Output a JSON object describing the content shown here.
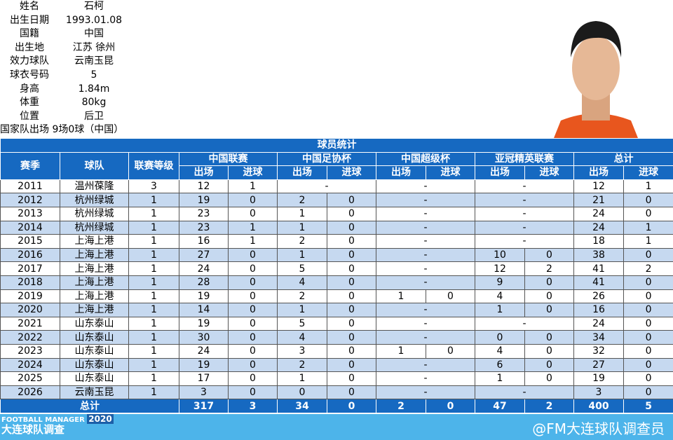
{
  "profile": [
    {
      "label": "姓名",
      "value": "石柯"
    },
    {
      "label": "出生日期",
      "value": "1993.01.08"
    },
    {
      "label": "国籍",
      "value": "中国"
    },
    {
      "label": "出生地",
      "value": "江苏 徐州"
    },
    {
      "label": "效力球队",
      "value": "云南玉昆"
    },
    {
      "label": "球衣号码",
      "value": "5"
    },
    {
      "label": "身高",
      "value": "1.84m"
    },
    {
      "label": "体重",
      "value": "80kg"
    },
    {
      "label": "位置",
      "value": "后卫"
    }
  ],
  "national_team": "国家队出场 9场0球（中国）",
  "table": {
    "title": "球员统计",
    "headers": [
      "赛季",
      "球队",
      "联赛等级",
      "中国联赛",
      "中国足协杯",
      "中国超级杯",
      "亚冠精英联赛",
      "总计"
    ],
    "subheaders": [
      "出场",
      "进球"
    ],
    "rows": [
      [
        "2011",
        "温州葆隆",
        "3",
        [
          "12",
          "1"
        ],
        "-",
        "-",
        "-",
        [
          "12",
          "1"
        ]
      ],
      [
        "2012",
        "杭州绿城",
        "1",
        [
          "19",
          "0"
        ],
        [
          "2",
          "0"
        ],
        "-",
        "-",
        [
          "21",
          "0"
        ]
      ],
      [
        "2013",
        "杭州绿城",
        "1",
        [
          "23",
          "0"
        ],
        [
          "1",
          "0"
        ],
        "-",
        "-",
        [
          "24",
          "0"
        ]
      ],
      [
        "2014",
        "杭州绿城",
        "1",
        [
          "23",
          "1"
        ],
        [
          "1",
          "0"
        ],
        "-",
        "-",
        [
          "24",
          "1"
        ]
      ],
      [
        "2015",
        "上海上港",
        "1",
        [
          "16",
          "1"
        ],
        [
          "2",
          "0"
        ],
        "-",
        "-",
        [
          "18",
          "1"
        ]
      ],
      [
        "2016",
        "上海上港",
        "1",
        [
          "27",
          "0"
        ],
        [
          "1",
          "0"
        ],
        "-",
        [
          "10",
          "0"
        ],
        [
          "38",
          "0"
        ]
      ],
      [
        "2017",
        "上海上港",
        "1",
        [
          "24",
          "0"
        ],
        [
          "5",
          "0"
        ],
        "-",
        [
          "12",
          "2"
        ],
        [
          "41",
          "2"
        ]
      ],
      [
        "2018",
        "上海上港",
        "1",
        [
          "28",
          "0"
        ],
        [
          "4",
          "0"
        ],
        "-",
        [
          "9",
          "0"
        ],
        [
          "41",
          "0"
        ]
      ],
      [
        "2019",
        "上海上港",
        "1",
        [
          "19",
          "0"
        ],
        [
          "2",
          "0"
        ],
        [
          "1",
          "0"
        ],
        [
          "4",
          "0"
        ],
        [
          "26",
          "0"
        ]
      ],
      [
        "2020",
        "上海上港",
        "1",
        [
          "14",
          "0"
        ],
        [
          "1",
          "0"
        ],
        "-",
        [
          "1",
          "0"
        ],
        [
          "16",
          "0"
        ]
      ],
      [
        "2021",
        "山东泰山",
        "1",
        [
          "19",
          "0"
        ],
        [
          "5",
          "0"
        ],
        "-",
        "-",
        [
          "24",
          "0"
        ]
      ],
      [
        "2022",
        "山东泰山",
        "1",
        [
          "30",
          "0"
        ],
        [
          "4",
          "0"
        ],
        "-",
        [
          "0",
          "0"
        ],
        [
          "34",
          "0"
        ]
      ],
      [
        "2023",
        "山东泰山",
        "1",
        [
          "24",
          "0"
        ],
        [
          "3",
          "0"
        ],
        [
          "1",
          "0"
        ],
        [
          "4",
          "0"
        ],
        [
          "32",
          "0"
        ]
      ],
      [
        "2024",
        "山东泰山",
        "1",
        [
          "19",
          "0"
        ],
        [
          "2",
          "0"
        ],
        "-",
        [
          "6",
          "0"
        ],
        [
          "27",
          "0"
        ]
      ],
      [
        "2025",
        "山东泰山",
        "1",
        [
          "17",
          "0"
        ],
        [
          "1",
          "0"
        ],
        "-",
        [
          "1",
          "0"
        ],
        [
          "19",
          "0"
        ]
      ],
      [
        "2026",
        "云南玉昆",
        "1",
        [
          "3",
          "0"
        ],
        [
          "0",
          "0"
        ],
        "-",
        "-",
        [
          "3",
          "0"
        ]
      ]
    ],
    "total": {
      "label": "总计",
      "values": [
        "317",
        "3",
        "34",
        "0",
        "2",
        "0",
        "47",
        "2",
        "400",
        "5"
      ]
    }
  },
  "footer": {
    "logo_top": "FOOTBALL MANAGER",
    "logo_year": "2020",
    "logo_bottom": "大连球队调查",
    "watermark": "@FM大连球队调查员"
  }
}
